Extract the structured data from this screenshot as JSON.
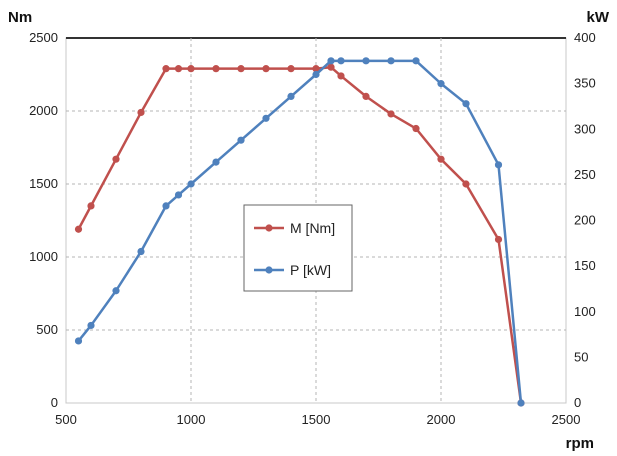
{
  "chart_data": {
    "type": "line",
    "x_axis": {
      "label": "rpm",
      "range": [
        500,
        2500
      ],
      "ticks": [
        500,
        1000,
        1500,
        2000,
        2500
      ]
    },
    "y_axis_left": {
      "label": "Nm",
      "range": [
        0,
        2500
      ],
      "ticks": [
        0,
        500,
        1000,
        1500,
        2000,
        2500
      ]
    },
    "y_axis_right": {
      "label": "kW",
      "range": [
        0,
        400
      ],
      "ticks": [
        0,
        50,
        100,
        150,
        200,
        250,
        300,
        350,
        400
      ]
    },
    "grid": true,
    "legend_position": "center-left",
    "series": [
      {
        "name": "M [Nm]",
        "axis": "left",
        "color": "#c0504d",
        "x": [
          550,
          600,
          700,
          800,
          900,
          950,
          1000,
          1100,
          1200,
          1300,
          1400,
          1500,
          1560,
          1600,
          1700,
          1800,
          1900,
          2000,
          2100,
          2230,
          2320
        ],
        "y": [
          1190,
          1350,
          1670,
          1990,
          2290,
          2290,
          2290,
          2290,
          2290,
          2290,
          2290,
          2290,
          2300,
          2240,
          2100,
          1980,
          1880,
          1670,
          1500,
          1120,
          0
        ]
      },
      {
        "name": "P [kW]",
        "axis": "right",
        "color": "#4f81bd",
        "x": [
          550,
          600,
          700,
          800,
          900,
          950,
          1000,
          1100,
          1200,
          1300,
          1400,
          1500,
          1560,
          1600,
          1700,
          1800,
          1900,
          2000,
          2100,
          2230,
          2320
        ],
        "y": [
          68,
          85,
          123,
          166,
          216,
          228,
          240,
          264,
          288,
          312,
          336,
          360,
          375,
          375,
          375,
          375,
          375,
          350,
          328,
          261,
          0
        ]
      }
    ]
  }
}
